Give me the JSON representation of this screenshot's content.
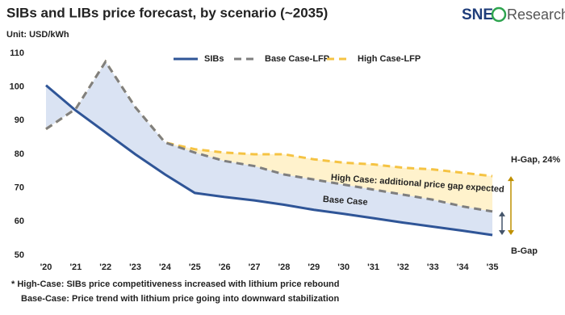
{
  "chart_data": {
    "type": "line",
    "title": "SIBs and LIBs price forecast, by scenario (~2035)",
    "logo": {
      "brand": "SNE",
      "suffix": "Research"
    },
    "unit": "Unit: USD/kWh",
    "categories": [
      "'20",
      "'21",
      "'22",
      "'23",
      "'24",
      "'25",
      "'26",
      "'27",
      "'28",
      "'29",
      "'30",
      "'31",
      "'32",
      "'33",
      "'34",
      "'35"
    ],
    "series": [
      {
        "name": "SIBs",
        "color": "#2f5597",
        "dash": false,
        "values": [
          100.5,
          93,
          86.5,
          80,
          74,
          68.5,
          67.3,
          66.3,
          65,
          63.5,
          62.3,
          61,
          59.7,
          58.5,
          57.3,
          56
        ]
      },
      {
        "name": "Base Case-LFP",
        "color": "#7f7f7f",
        "dash": true,
        "values": [
          87.5,
          93.5,
          107.5,
          94,
          83.5,
          80.5,
          78,
          76.5,
          74,
          72.5,
          71,
          69.5,
          68,
          66.5,
          64.5,
          63
        ]
      },
      {
        "name": "High Case-LFP",
        "color": "#f5c343",
        "dash": true,
        "values": [
          87.5,
          93.5,
          107.5,
          94,
          83.5,
          81.5,
          80.5,
          80,
          80,
          78.5,
          77.5,
          77,
          76,
          75.5,
          74.5,
          73.5
        ]
      }
    ],
    "ylim": [
      50,
      110
    ],
    "yticks": [
      50,
      60,
      70,
      80,
      90,
      100,
      110
    ],
    "grid": false,
    "legend": "top",
    "annotations": {
      "high_area": "High Case: additional price gap expected",
      "base_area": "Base Case",
      "h_gap": "H-Gap, 24%",
      "b_gap": "B-Gap"
    },
    "footnotes": [
      "* High-Case: SIBs price competitiveness increased with lithium price rebound",
      "Base-Case: Price trend with lithium price going into downward stabilization"
    ]
  }
}
